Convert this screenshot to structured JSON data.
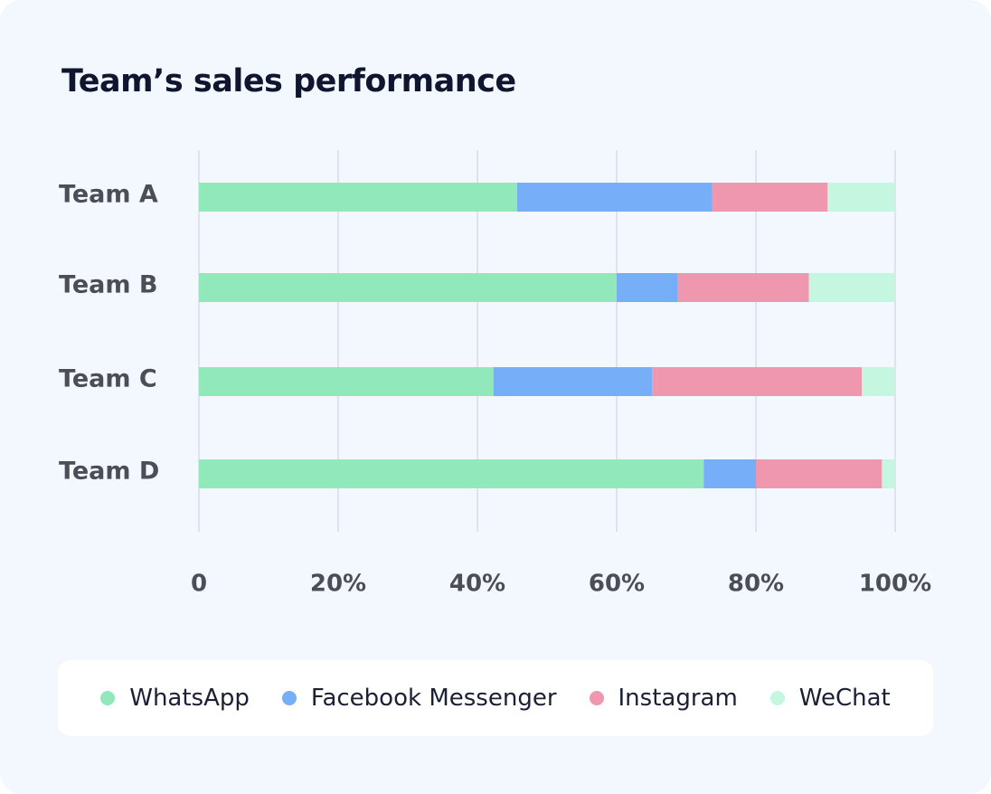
{
  "chart_data": {
    "type": "bar",
    "orientation": "horizontal",
    "stacked": true,
    "normalized": true,
    "title": "Team’s sales performance",
    "xlabel": "",
    "ylabel": "",
    "xlim": [
      0,
      100
    ],
    "x_ticks": [
      0,
      20,
      40,
      60,
      80,
      100
    ],
    "x_tick_labels": [
      "0",
      "20%",
      "40%",
      "60%",
      "80%",
      "100%"
    ],
    "grid": true,
    "legend_position": "bottom",
    "categories": [
      "Team A",
      "Team B",
      "Team C",
      "Team D"
    ],
    "series": [
      {
        "name": "WhatsApp",
        "color": "#91e8bb",
        "values": [
          45.7,
          60.0,
          42.3,
          72.5
        ]
      },
      {
        "name": "Facebook Messenger",
        "color": "#76aff8",
        "values": [
          28.0,
          8.8,
          22.8,
          7.5
        ]
      },
      {
        "name": "Instagram",
        "color": "#f097b0",
        "values": [
          16.6,
          18.8,
          30.1,
          18.1
        ]
      },
      {
        "name": "WeChat",
        "color": "#c4f6e0",
        "values": [
          9.7,
          12.4,
          4.8,
          1.9
        ]
      }
    ]
  },
  "colors": {
    "card_background": "#f3f7fe",
    "gridline": "#dfe3ec"
  }
}
